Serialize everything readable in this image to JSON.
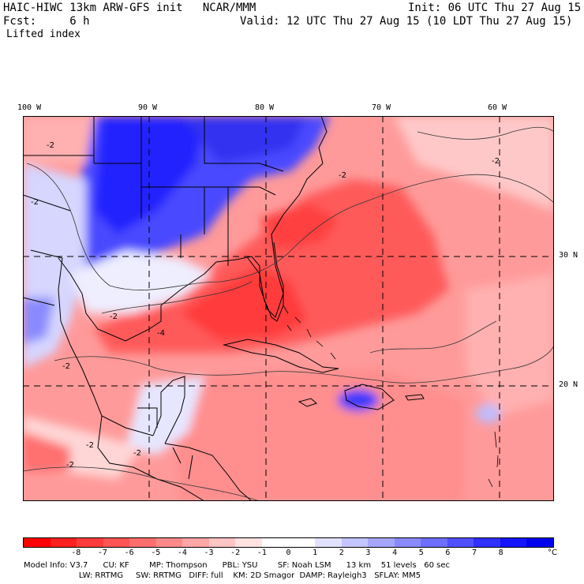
{
  "header": {
    "model_line": "HAIC-HIWC 13km ARW-GFS init   NCAR/MMM",
    "fcst_line": "Fcst:     6 h",
    "init_line": "Init: 06 UTC Thu 27 Aug 15",
    "valid_line": "Valid: 12 UTC Thu 27 Aug 15 (10 LDT Thu 27 Aug 15)",
    "field_name": "Lifted index"
  },
  "map": {
    "lon_labels": [
      "100 W",
      "90 W",
      "80 W",
      "70 W",
      "60 W"
    ],
    "lat_labels": [
      "30 N",
      "20 N"
    ],
    "contour_labels": [
      "-2",
      "-2",
      "-2",
      "-2",
      "-2",
      "-2",
      "-4",
      "-2",
      "-2",
      "-2"
    ]
  },
  "colorbar": {
    "colors": [
      "#ff0000",
      "#ff2020",
      "#ff3c3c",
      "#ff5555",
      "#ff6e6e",
      "#ff8a8a",
      "#ffa6a6",
      "#ffc4c4",
      "#ffe2e2",
      "#ffffff",
      "#ffffff",
      "#e2e2ff",
      "#c4c4ff",
      "#a6a6ff",
      "#8a8aff",
      "#6e6eff",
      "#5050ff",
      "#3030ff",
      "#1414ff",
      "#0000ee"
    ],
    "labels": [
      "-8",
      "-7",
      "-6",
      "-5",
      "-4",
      "-3",
      "-2",
      "-1",
      "0",
      "1",
      "2",
      "3",
      "4",
      "5",
      "6",
      "7",
      "8"
    ],
    "unit": "°C"
  },
  "model_info": {
    "line1": "Model Info: V3.7      CU: KF        MP: Thompson      PBL: YSU        SF: Noah LSM      13 km    51 levels   60 sec",
    "line2": "                      LW: RRTMG     SW: RRTMG   DIFF: full    KM: 2D Smagor  DAMP: Rayleigh3   SFLAY: MM5"
  }
}
